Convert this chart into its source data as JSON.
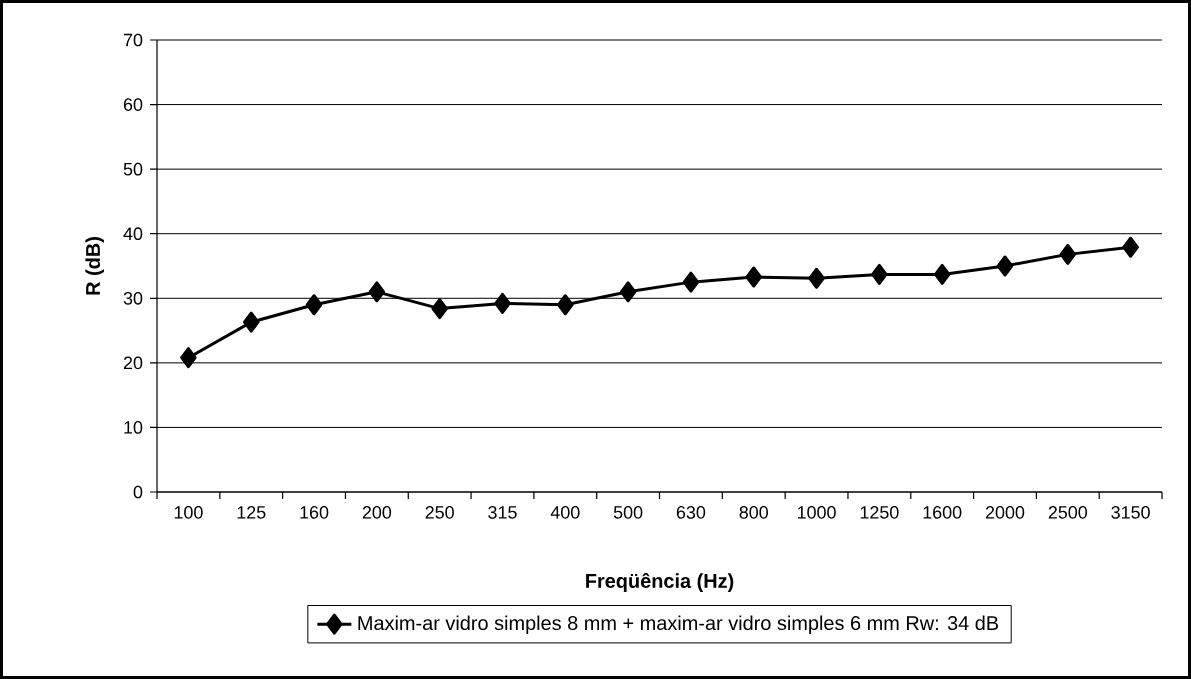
{
  "chart_data": {
    "type": "line",
    "xlabel": "Freqüência (Hz)",
    "ylabel": "R (dB)",
    "categories": [
      "100",
      "125",
      "160",
      "200",
      "250",
      "315",
      "400",
      "500",
      "630",
      "800",
      "1000",
      "1250",
      "1600",
      "2000",
      "2500",
      "3150"
    ],
    "series": [
      {
        "name": "Maxim-ar vidro simples 8 mm + maxim-ar vidro simples 6 mm   Rw: 34 dB",
        "color": "#000000",
        "values": [
          20.8,
          26.3,
          29.0,
          31.0,
          28.4,
          29.2,
          29.0,
          31.0,
          32.5,
          33.3,
          33.1,
          33.7,
          33.7,
          35.0,
          36.8,
          37.9
        ]
      }
    ],
    "ylim": [
      0,
      70
    ],
    "yticks": [
      0,
      10,
      20,
      30,
      40,
      50,
      60,
      70
    ],
    "grid": "y",
    "legend": "bottom",
    "marker": "diamond",
    "line_style": "solid"
  }
}
